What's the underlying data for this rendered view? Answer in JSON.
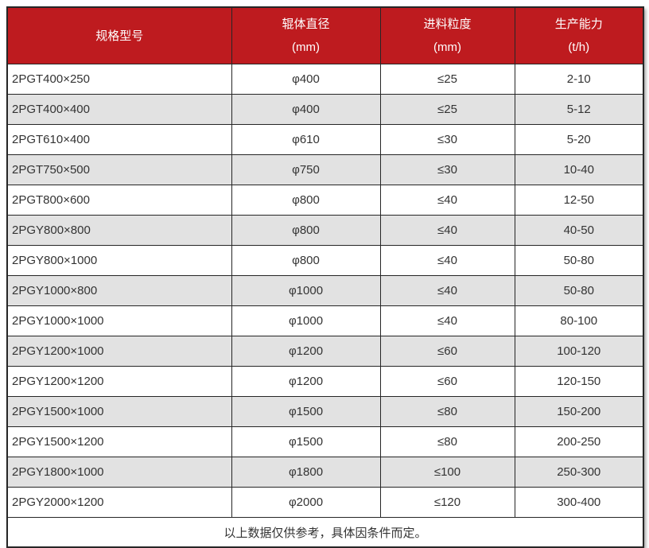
{
  "colors": {
    "header_bg": "#be1b1f",
    "header_text": "#ffffff",
    "row_bg": "#ffffff",
    "row_alt_bg": "#e2e2e2",
    "border": "#262626",
    "body_text": "#333333"
  },
  "chart_data": {
    "type": "table",
    "title": "",
    "columns": [
      {
        "title": "规格型号",
        "unit": ""
      },
      {
        "title": "辊体直径",
        "unit": "(mm)"
      },
      {
        "title": "进料粒度",
        "unit": "(mm)"
      },
      {
        "title": "生产能力",
        "unit": "(t/h)"
      }
    ],
    "rows": [
      [
        "2PGT400×250",
        "φ400",
        "≤25",
        "2-10"
      ],
      [
        "2PGT400×400",
        "φ400",
        "≤25",
        "5-12"
      ],
      [
        "2PGT610×400",
        "φ610",
        "≤30",
        "5-20"
      ],
      [
        "2PGT750×500",
        "φ750",
        "≤30",
        "10-40"
      ],
      [
        "2PGT800×600",
        "φ800",
        "≤40",
        "12-50"
      ],
      [
        "2PGY800×800",
        "φ800",
        "≤40",
        "40-50"
      ],
      [
        "2PGY800×1000",
        "φ800",
        "≤40",
        "50-80"
      ],
      [
        "2PGY1000×800",
        "φ1000",
        "≤40",
        "50-80"
      ],
      [
        "2PGY1000×1000",
        "φ1000",
        "≤40",
        "80-100"
      ],
      [
        "2PGY1200×1000",
        "φ1200",
        "≤60",
        "100-120"
      ],
      [
        "2PGY1200×1200",
        "φ1200",
        "≤60",
        "120-150"
      ],
      [
        "2PGY1500×1000",
        "φ1500",
        "≤80",
        "150-200"
      ],
      [
        "2PGY1500×1200",
        "φ1500",
        "≤80",
        "200-250"
      ],
      [
        "2PGY1800×1000",
        "φ1800",
        "≤100",
        "250-300"
      ],
      [
        "2PGY2000×1200",
        "φ2000",
        "≤120",
        "300-400"
      ]
    ],
    "footnote": "以上数据仅供参考，具体因条件而定。",
    "legend_position": "none",
    "grid": true
  }
}
